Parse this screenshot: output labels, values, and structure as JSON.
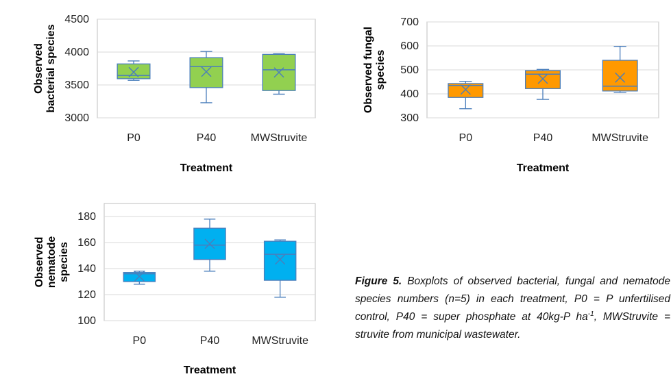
{
  "chart_data": [
    {
      "type": "box",
      "ylabel": [
        "Observed",
        "bacterial species"
      ],
      "xlabel": "Treatment",
      "ylim": [
        3000,
        4500
      ],
      "yticks": [
        3000,
        3500,
        4000,
        4500
      ],
      "grid": true,
      "color": "#92d050",
      "categories": [
        "P0",
        "P40",
        "MWStruvite"
      ],
      "boxes": [
        {
          "min": 3570,
          "q1": 3595,
          "median": 3645,
          "q3": 3820,
          "max": 3865,
          "mean": 3695
        },
        {
          "min": 3230,
          "q1": 3460,
          "median": 3780,
          "q3": 3915,
          "max": 4010,
          "mean": 3700
        },
        {
          "min": 3360,
          "q1": 3415,
          "median": 3730,
          "q3": 3965,
          "max": 3975,
          "mean": 3690
        }
      ]
    },
    {
      "type": "box",
      "ylabel": [
        "Observed fungal",
        "species"
      ],
      "xlabel": "Treatment",
      "ylim": [
        300,
        700
      ],
      "yticks": [
        300,
        400,
        500,
        600,
        700
      ],
      "grid": true,
      "color": "#ff9900",
      "categories": [
        "P0",
        "P40",
        "MWStruvite"
      ],
      "boxes": [
        {
          "min": 338,
          "q1": 385,
          "median": 435,
          "q3": 443,
          "max": 452,
          "mean": 418
        },
        {
          "min": 377,
          "q1": 422,
          "median": 482,
          "q3": 497,
          "max": 502,
          "mean": 463
        },
        {
          "min": 406,
          "q1": 412,
          "median": 432,
          "q3": 540,
          "max": 598,
          "mean": 468
        }
      ]
    },
    {
      "type": "box",
      "ylabel": [
        "Observed",
        "nematode",
        "species"
      ],
      "xlabel": "Treatment",
      "ylim": [
        100,
        190
      ],
      "yticks": [
        100,
        120,
        140,
        160,
        180
      ],
      "grid": true,
      "color": "#00b0f0",
      "categories": [
        "P0",
        "P40",
        "MWStruvite"
      ],
      "boxes": [
        {
          "min": 128,
          "q1": 130,
          "median": 136,
          "q3": 137,
          "max": 138,
          "mean": 134
        },
        {
          "min": 138,
          "q1": 147,
          "median": 158,
          "q3": 171,
          "max": 178,
          "mean": 159
        },
        {
          "min": 118,
          "q1": 131,
          "median": 151,
          "q3": 161,
          "max": 162,
          "mean": 147
        }
      ]
    }
  ],
  "caption": {
    "lead": "Figure 5.",
    "text_before_sup": " Boxplots of observed bacterial, fungal and nematode species numbers (n=5) in each treatment, P0 = P unfertilised control, P40 = super phosphate at 40kg-P ha",
    "sup": "-1",
    "text_after_sup": ", MWStruvite = struvite from municipal wastewater."
  },
  "colors": {
    "grid": "#d9d9d9",
    "axis": "#bfbfbf",
    "box_stroke": "#4a7ebb",
    "mean_marker": "#4a7ebb"
  }
}
